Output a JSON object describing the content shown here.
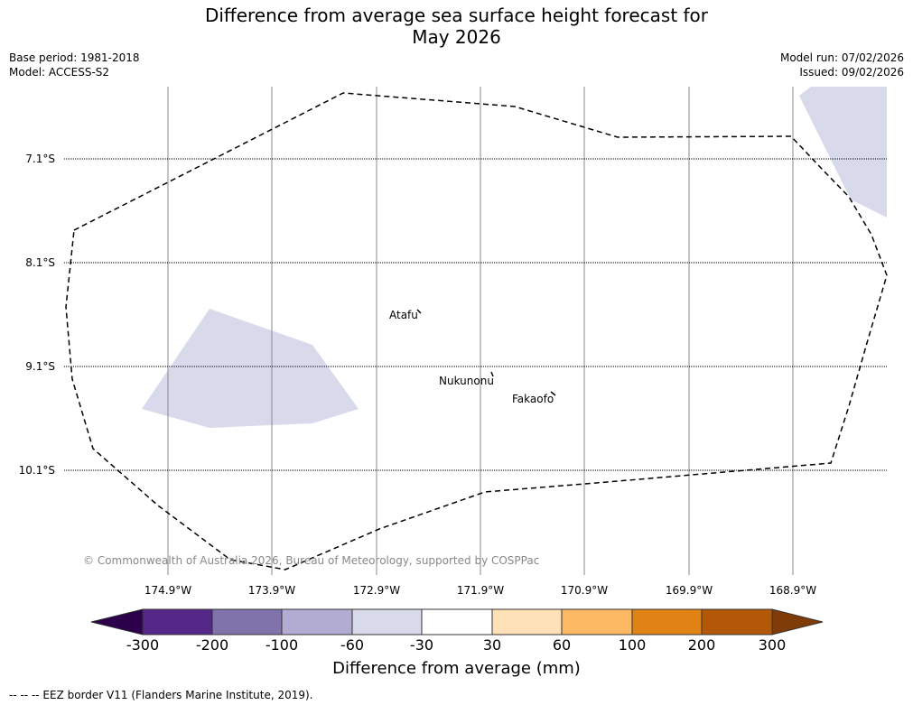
{
  "title": {
    "line1": "Difference from average sea surface height forecast for",
    "line2": "May 2026"
  },
  "meta_left": {
    "base_period": "Base period: 1981-2018",
    "model": "Model: ACCESS-S2"
  },
  "meta_right": {
    "model_run": "Model run: 07/02/2026",
    "issued": "Issued: 09/02/2026"
  },
  "map": {
    "lat_labels": [
      "7.1°S",
      "8.1°S",
      "9.1°S",
      "10.1°S"
    ],
    "lon_labels": [
      "174.9°W",
      "173.9°W",
      "172.9°W",
      "171.9°W",
      "170.9°W",
      "169.9°W",
      "168.9°W"
    ],
    "places": [
      {
        "name": "Atafu"
      },
      {
        "name": "Nukunonu"
      },
      {
        "name": "Fakaofo"
      }
    ],
    "copyright": "© Commonwealth of Australia 2026, Bureau of Meteorology, supported by COSPPac"
  },
  "colorbar": {
    "title": "Difference from average (mm)",
    "ticks": [
      "-300",
      "-200",
      "-100",
      "-60",
      "-30",
      "30",
      "60",
      "100",
      "200",
      "300"
    ],
    "colors": [
      "#2d004b",
      "#542788",
      "#8073ac",
      "#b2abd2",
      "#d8daeb",
      "#ffffff",
      "#fee0b6",
      "#fdb863",
      "#e08214",
      "#b35806",
      "#7f3b08"
    ]
  },
  "footnote": "--  --  -- EEZ border V11 (Flanders Marine Institute, 2019)."
}
